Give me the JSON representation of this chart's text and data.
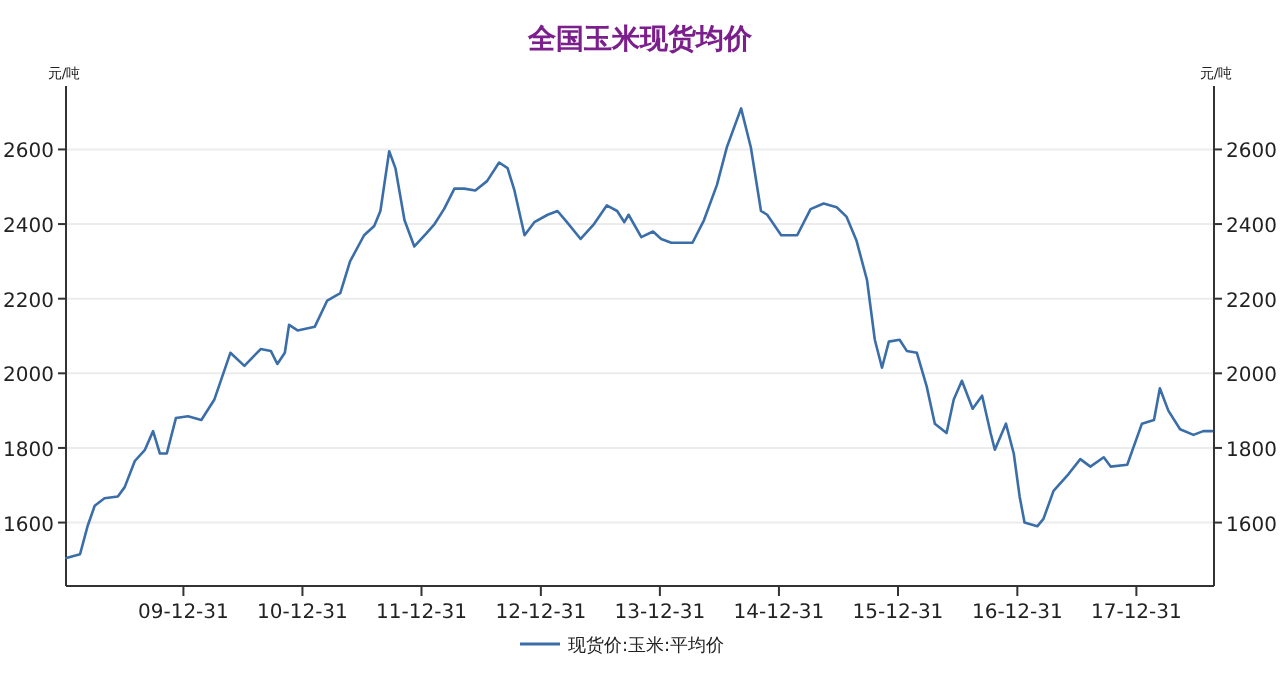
{
  "chart_data": {
    "type": "line",
    "title": "全国玉米现货均价",
    "ylabel": "元/吨",
    "y2label": "元/吨",
    "xlim": [
      "2009-01-05",
      "2018-08-26"
    ],
    "xticks": [
      {
        "value": "2009-12-31",
        "label": "09-12-31"
      },
      {
        "value": "2010-12-31",
        "label": "10-12-31"
      },
      {
        "value": "2011-12-31",
        "label": "11-12-31"
      },
      {
        "value": "2012-12-31",
        "label": "12-12-31"
      },
      {
        "value": "2013-12-31",
        "label": "13-12-31"
      },
      {
        "value": "2014-12-31",
        "label": "14-12-31"
      },
      {
        "value": "2015-12-31",
        "label": "15-12-31"
      },
      {
        "value": "2016-12-31",
        "label": "16-12-31"
      },
      {
        "value": "2017-12-31",
        "label": "17-12-31"
      }
    ],
    "ylim": [
      1430,
      2770
    ],
    "yticks": [
      1600,
      1800,
      2000,
      2200,
      2400,
      2600
    ],
    "y2lim": [
      1430,
      2770
    ],
    "y2ticks": [
      1600,
      1800,
      2000,
      2200,
      2400,
      2600
    ],
    "grid": "y",
    "legend": "bottom",
    "marker": "none",
    "line_style": "solid",
    "series": [
      {
        "name": "现货价:玉米:平均价",
        "color": "#3b6ea8",
        "x": [
          "2009-01-06",
          "2009-02-17",
          "2009-03-12",
          "2009-04-03",
          "2009-05-03",
          "2009-06-13",
          "2009-07-04",
          "2009-08-04",
          "2009-09-04",
          "2009-09-29",
          "2009-10-20",
          "2009-11-10",
          "2009-12-08",
          "2010-01-14",
          "2010-02-24",
          "2010-04-05",
          "2010-05-24",
          "2010-07-06",
          "2010-08-25",
          "2010-09-25",
          "2010-10-15",
          "2010-11-07",
          "2010-11-20",
          "2010-12-16",
          "2011-02-07",
          "2011-03-17",
          "2011-04-26",
          "2011-05-26",
          "2011-07-08",
          "2011-08-08",
          "2011-08-27",
          "2011-09-23",
          "2011-10-12",
          "2011-11-09",
          "2011-12-09",
          "2012-01-15",
          "2012-02-09",
          "2012-03-09",
          "2012-04-10",
          "2012-05-10",
          "2012-06-13",
          "2012-07-19",
          "2012-08-25",
          "2012-09-20",
          "2012-10-11",
          "2012-11-11",
          "2012-12-11",
          "2013-01-21",
          "2013-02-20",
          "2013-03-21",
          "2013-05-02",
          "2013-06-12",
          "2013-07-21",
          "2013-08-22",
          "2013-09-13",
          "2013-09-26",
          "2013-11-04",
          "2013-12-10",
          "2014-01-04",
          "2014-02-04",
          "2014-04-10",
          "2014-05-15",
          "2014-06-24",
          "2014-07-24",
          "2014-09-06",
          "2014-10-06",
          "2014-11-06",
          "2014-11-25",
          "2015-01-07",
          "2015-02-25",
          "2015-04-07",
          "2015-05-17",
          "2015-06-26",
          "2015-07-26",
          "2015-08-26",
          "2015-09-27",
          "2015-10-21",
          "2015-11-12",
          "2015-12-03",
          "2016-01-05",
          "2016-01-27",
          "2016-02-27",
          "2016-03-28",
          "2016-04-22",
          "2016-05-28",
          "2016-06-19",
          "2016-07-14",
          "2016-08-16",
          "2016-09-14",
          "2016-10-10",
          "2016-10-23",
          "2016-11-26",
          "2016-12-20",
          "2017-01-07",
          "2017-01-22",
          "2017-03-02",
          "2017-03-21",
          "2017-04-21",
          "2017-06-06",
          "2017-07-12",
          "2017-08-12",
          "2017-09-22",
          "2017-10-13",
          "2017-12-03",
          "2018-01-17",
          "2018-02-23",
          "2018-03-13",
          "2018-04-08",
          "2018-05-14",
          "2018-06-24",
          "2018-07-24",
          "2018-08-20"
        ],
        "values": [
          1505,
          1515,
          1590,
          1645,
          1665,
          1670,
          1695,
          1765,
          1795,
          1845,
          1785,
          1785,
          1880,
          1885,
          1875,
          1930,
          2055,
          2020,
          2065,
          2060,
          2025,
          2055,
          2130,
          2115,
          2125,
          2195,
          2215,
          2300,
          2370,
          2395,
          2435,
          2595,
          2550,
          2410,
          2340,
          2375,
          2400,
          2440,
          2495,
          2495,
          2490,
          2515,
          2565,
          2550,
          2490,
          2370,
          2405,
          2425,
          2435,
          2405,
          2360,
          2400,
          2450,
          2435,
          2405,
          2425,
          2365,
          2380,
          2360,
          2350,
          2350,
          2410,
          2505,
          2605,
          2710,
          2605,
          2435,
          2425,
          2370,
          2370,
          2440,
          2455,
          2445,
          2420,
          2355,
          2250,
          2090,
          2015,
          2085,
          2090,
          2060,
          2055,
          1965,
          1865,
          1840,
          1930,
          1980,
          1905,
          1940,
          1840,
          1795,
          1865,
          1785,
          1670,
          1600,
          1590,
          1610,
          1685,
          1730,
          1770,
          1750,
          1775,
          1750,
          1755,
          1865,
          1875,
          1960,
          1900,
          1850,
          1835,
          1845,
          1845
        ]
      }
    ]
  }
}
